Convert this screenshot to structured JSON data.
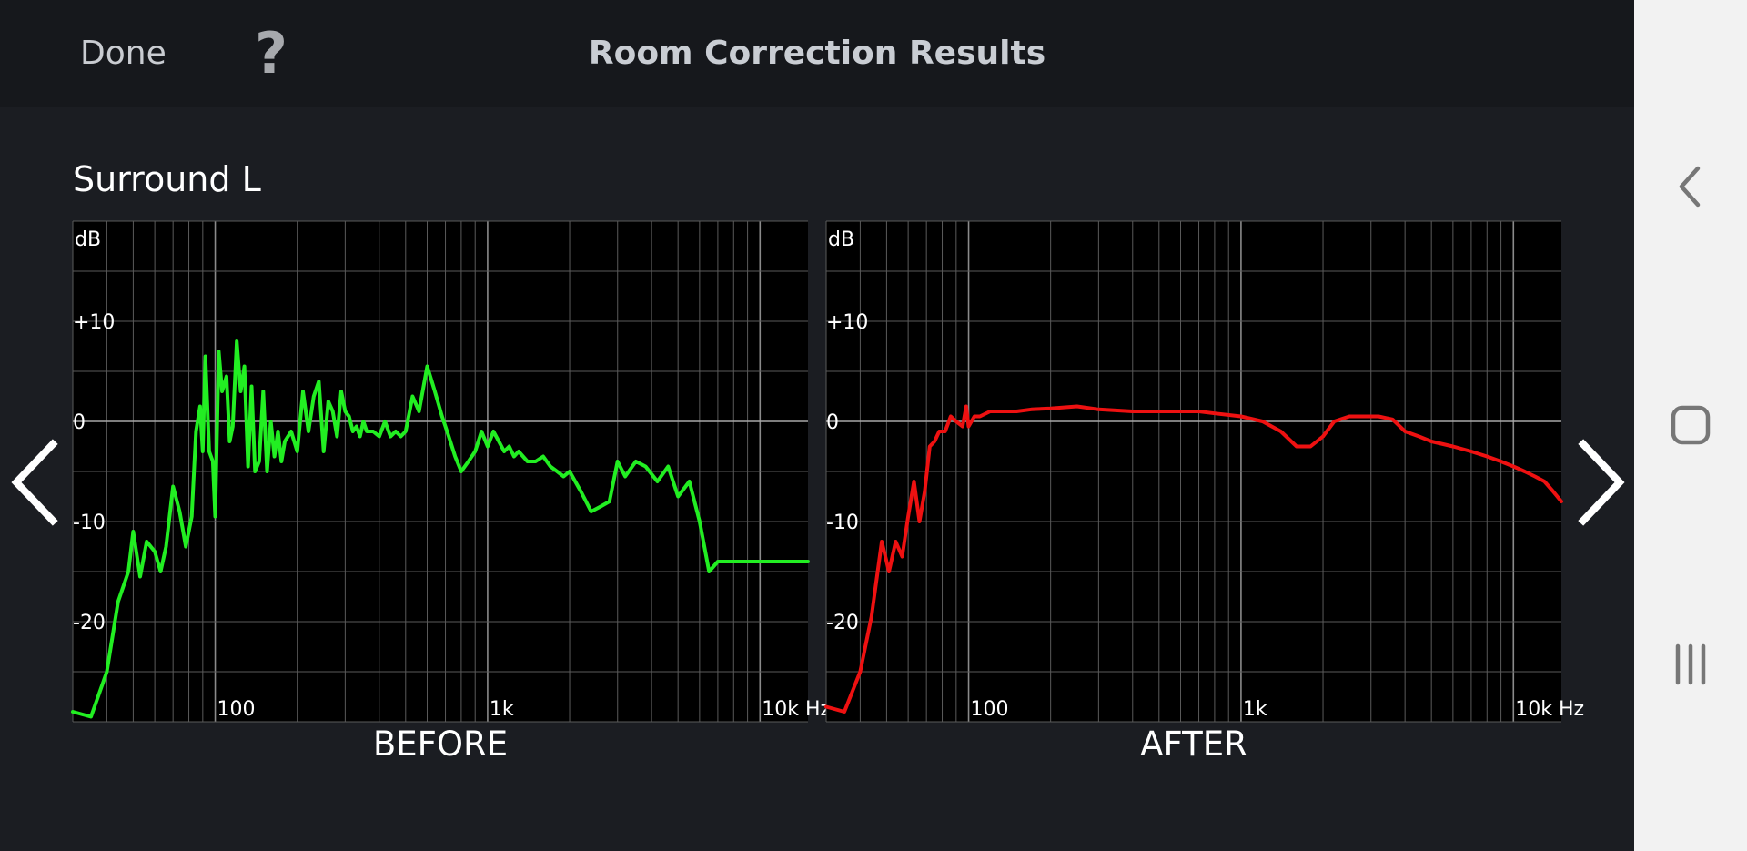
{
  "header": {
    "done_label": "Done",
    "help_label": "?",
    "title": "Room Correction Results"
  },
  "channel": "Surround L",
  "colors": {
    "before_line": "#22ee22",
    "after_line": "#ee1111",
    "background": "#1b1d22",
    "header_bg": "#16181c",
    "plot_bg": "#000000",
    "grid": "#5a5a5a"
  },
  "icons": {
    "nav_prev": "chevron-left-icon",
    "nav_next": "chevron-right-icon",
    "sys_back": "back-icon",
    "sys_home": "home-icon",
    "sys_recents": "recents-icon"
  },
  "chart_data": [
    {
      "type": "line",
      "caption": "BEFORE",
      "ylabel": "dB",
      "x_scale": "log",
      "xlim": [
        30,
        15000
      ],
      "ylim": [
        -30,
        20
      ],
      "y_ticks": [
        {
          "value": 10,
          "label": "+10"
        },
        {
          "value": 0,
          "label": "0"
        },
        {
          "value": -10,
          "label": "-10"
        },
        {
          "value": -20,
          "label": "-20"
        }
      ],
      "x_ticks": [
        {
          "value": 100,
          "label": "100"
        },
        {
          "value": 1000,
          "label": "1k"
        },
        {
          "value": 10000,
          "label": "10k Hz"
        }
      ],
      "grid": true,
      "series": [
        {
          "x": [
            30,
            35,
            40,
            44,
            48,
            50,
            53,
            56,
            60,
            63,
            66,
            70,
            74,
            78,
            82,
            85,
            88,
            90,
            92,
            95,
            98,
            100,
            103,
            106,
            110,
            113,
            116,
            120,
            124,
            128,
            132,
            136,
            140,
            145,
            150,
            155,
            160,
            165,
            170,
            175,
            180,
            190,
            200,
            210,
            220,
            230,
            240,
            250,
            260,
            270,
            280,
            290,
            300,
            310,
            320,
            330,
            340,
            350,
            360,
            380,
            400,
            420,
            440,
            460,
            480,
            500,
            530,
            560,
            600,
            640,
            680,
            720,
            760,
            800,
            850,
            900,
            950,
            1000,
            1050,
            1100,
            1150,
            1200,
            1250,
            1300,
            1400,
            1500,
            1600,
            1700,
            1800,
            1900,
            2000,
            2200,
            2400,
            2600,
            2800,
            3000,
            3200,
            3500,
            3800,
            4200,
            4600,
            5000,
            5500,
            6000,
            6500,
            7000,
            7500,
            8000,
            8500,
            9000,
            9500,
            10000,
            10500,
            11000,
            12000,
            13000,
            14000,
            15000
          ],
          "y": [
            -29,
            -29.5,
            -25,
            -18,
            -15,
            -11,
            -15.5,
            -12,
            -13,
            -15,
            -12.5,
            -6.5,
            -9,
            -12.5,
            -9.5,
            -1,
            1.5,
            -3,
            6.5,
            -3,
            -4,
            -9.5,
            7,
            3,
            4.5,
            -2,
            -0.5,
            8,
            3,
            5.5,
            -4.5,
            3.5,
            -5,
            -4,
            3,
            -5,
            0,
            -3.5,
            -1,
            -4,
            -2,
            -1,
            -3,
            3,
            -1,
            2.5,
            4,
            -3,
            2,
            1,
            -1.5,
            3,
            1,
            0.5,
            -1,
            -0.5,
            -1.5,
            0,
            -1,
            -1,
            -1.5,
            0,
            -1.5,
            -1,
            -1.5,
            -1,
            2.5,
            1,
            5.5,
            3,
            0.5,
            -1.5,
            -3.5,
            -5,
            -4,
            -3,
            -1,
            -2.5,
            -1,
            -2,
            -3,
            -2.5,
            -3.5,
            -3,
            -4,
            -4,
            -3.5,
            -4.5,
            -5,
            -5.5,
            -5,
            -7,
            -9,
            -8.5,
            -8,
            -4,
            -5.5,
            -4,
            -4.5,
            -6,
            -4.5,
            -7.5,
            -6,
            -10,
            -15,
            -14,
            -14,
            -14,
            -14,
            -14,
            -14,
            -14,
            -14,
            -14,
            -14,
            -14,
            -14,
            -14
          ]
        }
      ]
    },
    {
      "type": "line",
      "caption": "AFTER",
      "ylabel": "dB",
      "x_scale": "log",
      "xlim": [
        30,
        15000
      ],
      "ylim": [
        -30,
        20
      ],
      "y_ticks": [
        {
          "value": 10,
          "label": "+10"
        },
        {
          "value": 0,
          "label": "0"
        },
        {
          "value": -10,
          "label": "-10"
        },
        {
          "value": -20,
          "label": "-20"
        }
      ],
      "x_ticks": [
        {
          "value": 100,
          "label": "100"
        },
        {
          "value": 1000,
          "label": "1k"
        },
        {
          "value": 10000,
          "label": "10k Hz"
        }
      ],
      "grid": true,
      "series": [
        {
          "x": [
            30,
            35,
            40,
            44,
            48,
            51,
            54,
            57,
            60,
            63,
            66,
            69,
            72,
            75,
            78,
            82,
            86,
            90,
            95,
            98,
            100,
            105,
            110,
            120,
            130,
            150,
            170,
            200,
            250,
            300,
            400,
            500,
            600,
            700,
            800,
            1000,
            1200,
            1400,
            1600,
            1800,
            2000,
            2200,
            2500,
            2800,
            3200,
            3600,
            4000,
            4500,
            5000,
            6000,
            7000,
            8000,
            9000,
            10000,
            11000,
            12000,
            13000,
            14000,
            15000
          ],
          "y": [
            -28.5,
            -29,
            -25,
            -19.5,
            -12,
            -15,
            -12,
            -13.5,
            -9.5,
            -6,
            -10,
            -7,
            -2.5,
            -2,
            -1,
            -1,
            0.5,
            0,
            -0.5,
            1.5,
            -0.5,
            0.5,
            0.5,
            1,
            1,
            1,
            1.2,
            1.3,
            1.5,
            1.2,
            1,
            1,
            1,
            1,
            0.8,
            0.5,
            0,
            -1,
            -2.5,
            -2.5,
            -1.5,
            0,
            0.5,
            0.5,
            0.5,
            0.2,
            -1,
            -1.5,
            -2,
            -2.5,
            -3,
            -3.5,
            -4,
            -4.5,
            -5,
            -5.5,
            -6,
            -7,
            -8
          ]
        }
      ]
    }
  ]
}
